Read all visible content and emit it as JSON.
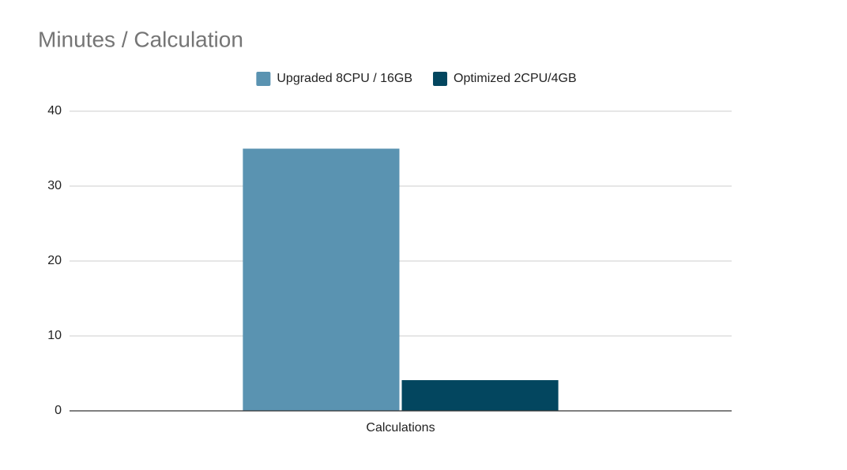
{
  "chart_data": {
    "type": "bar",
    "title": "Minutes / Calculation",
    "categories": [
      "Calculations"
    ],
    "series": [
      {
        "name": "Upgraded 8CPU / 16GB",
        "color": "#5a93b1",
        "values": [
          35
        ]
      },
      {
        "name": "Optimized 2CPU/4GB",
        "color": "#03465f",
        "values": [
          4.1
        ]
      }
    ],
    "ylim": [
      0,
      40
    ],
    "yticks": [
      0,
      10,
      20,
      30,
      40
    ],
    "grid": true,
    "legend": "top"
  }
}
